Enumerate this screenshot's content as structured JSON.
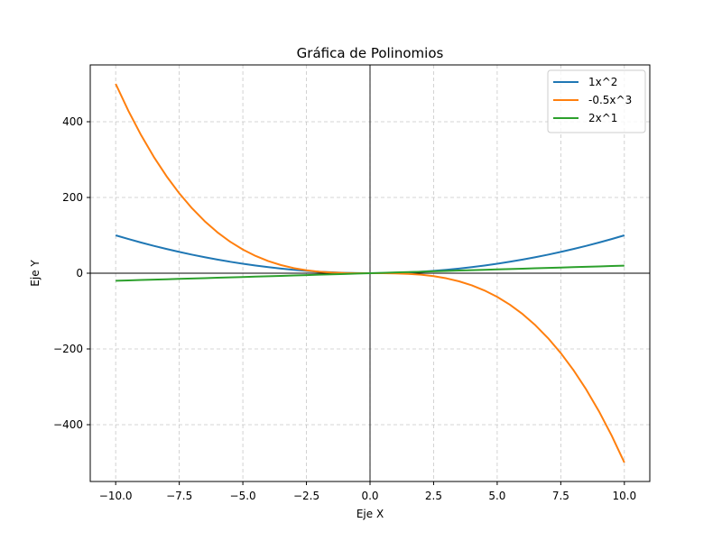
{
  "chart_data": {
    "type": "line",
    "title": "Gráfica de Polinomios",
    "xlabel": "Eje X",
    "ylabel": "Eje Y",
    "xlim": [
      -11.0,
      11.0
    ],
    "ylim": [
      -550,
      550
    ],
    "x_ticks": [
      -10.0,
      -7.5,
      -5.0,
      -2.5,
      0.0,
      2.5,
      5.0,
      7.5,
      10.0
    ],
    "x_tick_labels": [
      "−10.0",
      "−7.5",
      "−5.0",
      "−2.5",
      "0.0",
      "2.5",
      "5.0",
      "7.5",
      "10.0"
    ],
    "y_ticks": [
      -400,
      -200,
      0,
      200,
      400
    ],
    "y_tick_labels": [
      "−400",
      "−200",
      "0",
      "200",
      "400"
    ],
    "grid": true,
    "legend_position": "top-right",
    "x": [
      -10.0,
      -9.5,
      -9.0,
      -8.5,
      -8.0,
      -7.5,
      -7.0,
      -6.5,
      -6.0,
      -5.5,
      -5.0,
      -4.5,
      -4.0,
      -3.5,
      -3.0,
      -2.5,
      -2.0,
      -1.5,
      -1.0,
      -0.5,
      0.0,
      0.5,
      1.0,
      1.5,
      2.0,
      2.5,
      3.0,
      3.5,
      4.0,
      4.5,
      5.0,
      5.5,
      6.0,
      6.5,
      7.0,
      7.5,
      8.0,
      8.5,
      9.0,
      9.5,
      10.0
    ],
    "series": [
      {
        "name": "1x^2",
        "color": "#1f77b4",
        "values": [
          100.0,
          90.25,
          81.0,
          72.25,
          64.0,
          56.25,
          49.0,
          42.25,
          36.0,
          30.25,
          25.0,
          20.25,
          16.0,
          12.25,
          9.0,
          6.25,
          4.0,
          2.25,
          1.0,
          0.25,
          0.0,
          0.25,
          1.0,
          2.25,
          4.0,
          6.25,
          9.0,
          12.25,
          16.0,
          20.25,
          25.0,
          30.25,
          36.0,
          42.25,
          49.0,
          56.25,
          64.0,
          72.25,
          81.0,
          90.25,
          100.0
        ]
      },
      {
        "name": "-0.5x^3",
        "color": "#ff7f0e",
        "values": [
          500.0,
          428.69,
          364.5,
          307.06,
          256.0,
          210.94,
          171.5,
          137.31,
          108.0,
          83.19,
          62.5,
          45.56,
          32.0,
          21.44,
          13.5,
          7.81,
          4.0,
          1.69,
          0.5,
          0.06,
          0.0,
          -0.06,
          -0.5,
          -1.69,
          -4.0,
          -7.81,
          -13.5,
          -21.44,
          -32.0,
          -45.56,
          -62.5,
          -83.19,
          -108.0,
          -137.31,
          -171.5,
          -210.94,
          -256.0,
          -307.06,
          -364.5,
          -428.69,
          -500.0
        ]
      },
      {
        "name": "2x^1",
        "color": "#2ca02c",
        "values": [
          -20.0,
          -19.0,
          -18.0,
          -17.0,
          -16.0,
          -15.0,
          -14.0,
          -13.0,
          -12.0,
          -11.0,
          -10.0,
          -9.0,
          -8.0,
          -7.0,
          -6.0,
          -5.0,
          -4.0,
          -3.0,
          -2.0,
          -1.0,
          0.0,
          1.0,
          2.0,
          3.0,
          4.0,
          5.0,
          6.0,
          7.0,
          8.0,
          9.0,
          10.0,
          11.0,
          12.0,
          13.0,
          14.0,
          15.0,
          16.0,
          17.0,
          18.0,
          19.0,
          20.0
        ]
      }
    ]
  }
}
